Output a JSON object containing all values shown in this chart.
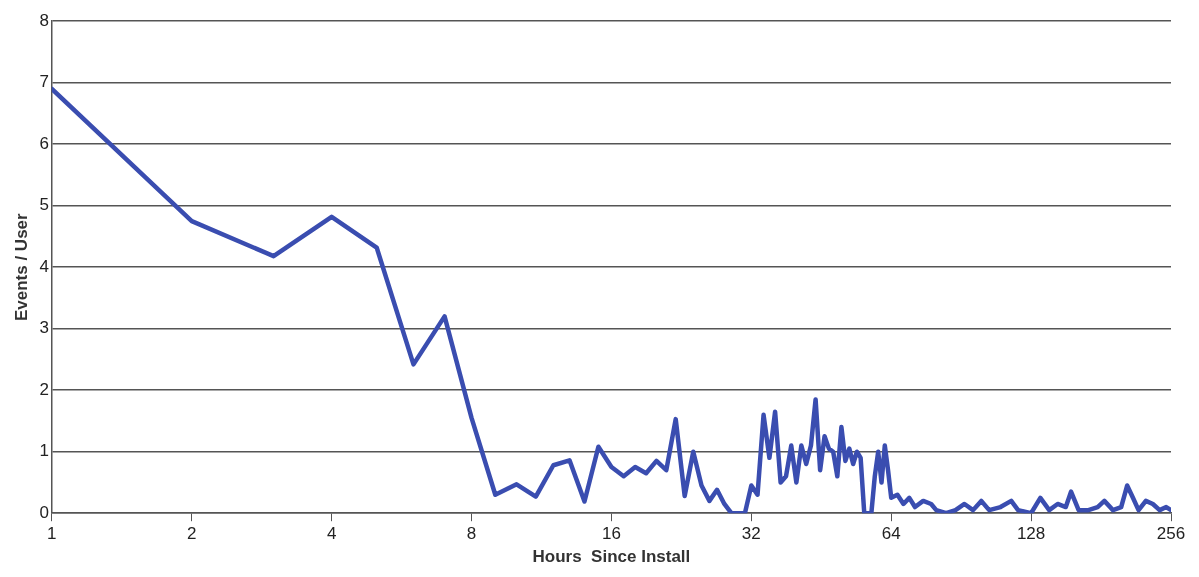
{
  "chart_data": {
    "type": "line",
    "xlabel": "Hours  Since Install",
    "ylabel": "Events / User",
    "log": "x",
    "grid": "y",
    "xlim": [
      1,
      256
    ],
    "xticks": [
      1,
      2,
      4,
      8,
      16,
      32,
      64,
      128,
      256
    ],
    "ylim": [
      0,
      8
    ],
    "yticks": [
      0,
      1,
      2,
      3,
      4,
      5,
      6,
      7,
      8
    ],
    "marker": "none",
    "series": [
      {
        "color": "#3a4db0",
        "x": [
          1,
          2,
          3,
          4,
          5,
          6,
          7,
          8,
          9,
          10,
          11,
          12,
          13,
          14,
          15,
          16,
          17,
          18,
          19,
          20,
          21,
          22,
          23,
          24,
          25,
          26,
          27,
          28,
          29,
          30,
          31,
          32,
          33,
          34,
          35,
          36,
          37,
          38,
          39,
          40,
          41,
          42,
          43,
          44,
          45,
          46,
          47,
          48,
          49,
          50,
          51,
          52,
          53,
          54,
          55,
          56,
          57,
          58,
          59,
          60,
          61,
          62,
          63,
          64,
          66,
          68,
          70,
          72,
          75,
          78,
          80,
          84,
          88,
          92,
          96,
          100,
          104,
          110,
          116,
          120,
          128,
          134,
          140,
          146,
          152,
          156,
          162,
          170,
          178,
          184,
          192,
          200,
          206,
          212,
          218,
          226,
          234,
          242,
          250,
          256
        ],
        "values": [
          6.9,
          4.75,
          4.18,
          4.82,
          4.32,
          2.42,
          3.2,
          1.55,
          0.3,
          0.47,
          0.27,
          0.78,
          0.86,
          0.19,
          1.08,
          0.75,
          0.6,
          0.75,
          0.65,
          0.85,
          0.7,
          1.53,
          0.28,
          1.0,
          0.45,
          0.2,
          0.38,
          0.15,
          0,
          0,
          0,
          0.45,
          0.3,
          1.6,
          0.9,
          1.65,
          0.5,
          0.6,
          1.1,
          0.5,
          1.1,
          0.8,
          1.1,
          1.85,
          0.7,
          1.25,
          1.05,
          1.0,
          0.6,
          1.4,
          0.85,
          1.05,
          0.8,
          1.0,
          0.9,
          0,
          0,
          0,
          0.6,
          1.0,
          0.5,
          1.1,
          0.7,
          0.25,
          0.3,
          0.15,
          0.25,
          0.1,
          0.2,
          0.15,
          0.05,
          0,
          0.05,
          0.15,
          0.05,
          0.2,
          0.05,
          0.1,
          0.2,
          0.05,
          0,
          0.25,
          0.05,
          0.15,
          0.1,
          0.35,
          0.05,
          0.05,
          0.1,
          0.2,
          0.05,
          0.1,
          0.45,
          0.25,
          0.05,
          0.2,
          0.15,
          0.05,
          0.1,
          0.05
        ]
      }
    ]
  }
}
